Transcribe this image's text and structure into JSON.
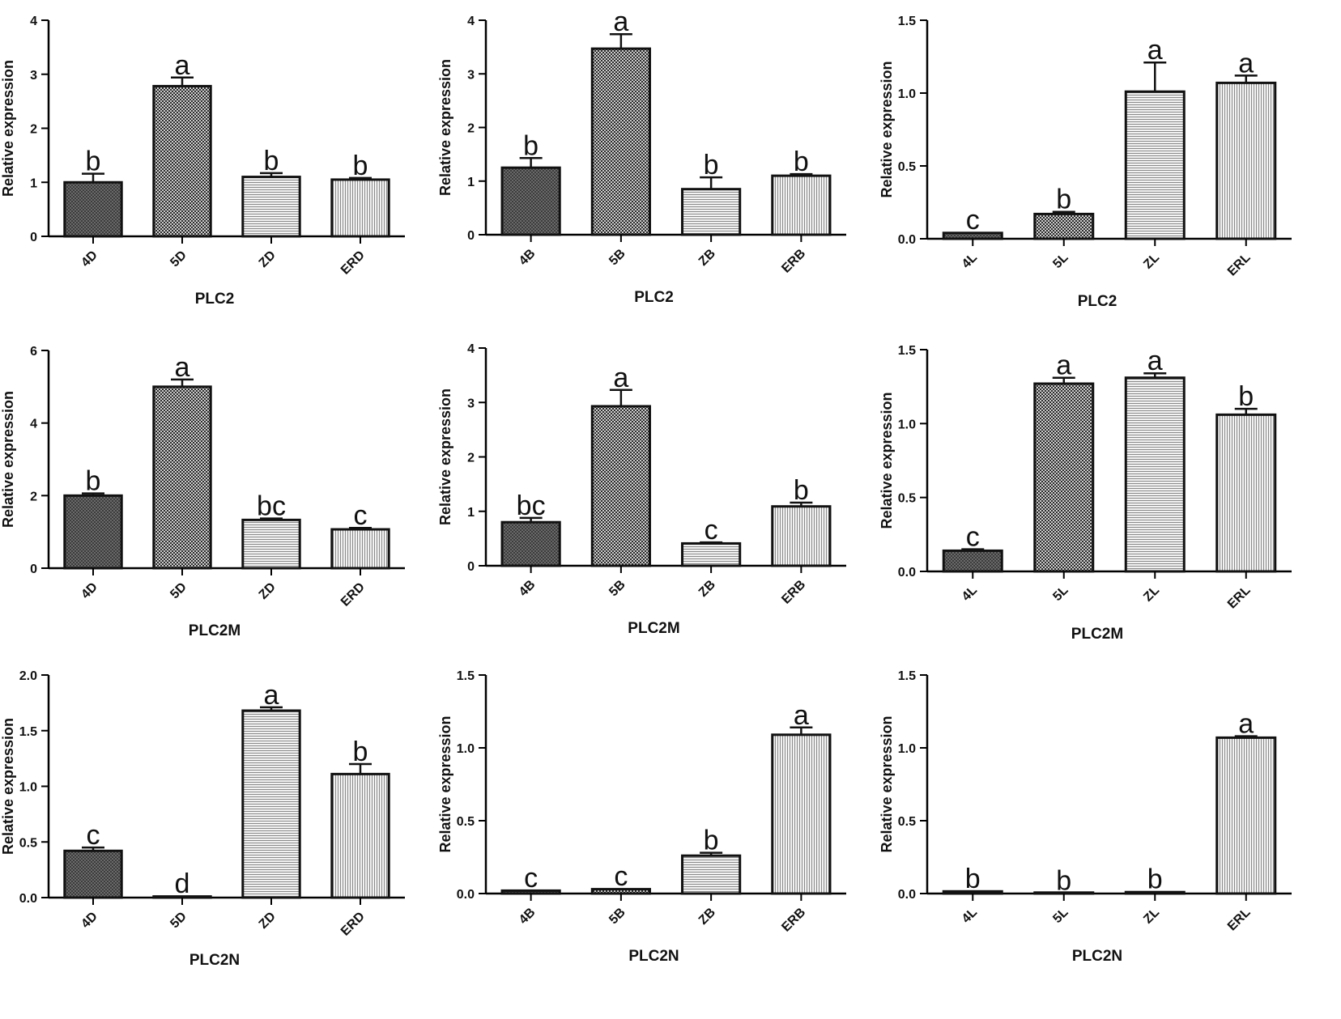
{
  "colors": {
    "axis": "#000000",
    "bar_stroke": "#111111",
    "background": "#ffffff"
  },
  "chart_data": [
    {
      "type": "bar",
      "title": "",
      "xlabel": "PLC2",
      "ylabel": "Relative expression",
      "categories": [
        "4D",
        "5D",
        "ZD",
        "ERD"
      ],
      "values": [
        1.0,
        2.78,
        1.1,
        1.05
      ],
      "errors": [
        0.16,
        0.16,
        0.07,
        0.03
      ],
      "letters": [
        "b",
        "a",
        "b",
        "b"
      ],
      "ylim": [
        0,
        4
      ],
      "yticks": [
        "0",
        "1",
        "2",
        "3",
        "4"
      ]
    },
    {
      "type": "bar",
      "title": "",
      "xlabel": "PLC2",
      "ylabel": "Relative expression",
      "categories": [
        "4B",
        "5B",
        "ZB",
        "ERB"
      ],
      "values": [
        1.25,
        3.47,
        0.85,
        1.1
      ],
      "errors": [
        0.18,
        0.27,
        0.22,
        0.03
      ],
      "letters": [
        "b",
        "a",
        "b",
        "b"
      ],
      "ylim": [
        0,
        4
      ],
      "yticks": [
        "0",
        "1",
        "2",
        "3",
        "4"
      ]
    },
    {
      "type": "bar",
      "title": "",
      "xlabel": "PLC2",
      "ylabel": "Relative expression",
      "categories": [
        "4L",
        "5L",
        "ZL",
        "ERL"
      ],
      "values": [
        0.04,
        0.17,
        1.01,
        1.07
      ],
      "errors": [
        0.005,
        0.015,
        0.2,
        0.05
      ],
      "letters": [
        "c",
        "b",
        "a",
        "a"
      ],
      "ylim": [
        0,
        1.5
      ],
      "yticks": [
        "0.0",
        "0.5",
        "1.0",
        "1.5"
      ]
    },
    {
      "type": "bar",
      "title": "",
      "xlabel": "PLC2M",
      "ylabel": "Relative expression",
      "categories": [
        "4D",
        "5D",
        "ZD",
        "ERD"
      ],
      "values": [
        2.0,
        5.0,
        1.33,
        1.07
      ],
      "errors": [
        0.06,
        0.2,
        0.04,
        0.04
      ],
      "letters": [
        "b",
        "a",
        "bc",
        "c"
      ],
      "ylim": [
        0,
        6
      ],
      "yticks": [
        "0",
        "2",
        "4",
        "6"
      ]
    },
    {
      "type": "bar",
      "title": "",
      "xlabel": "PLC2M",
      "ylabel": "Relative expression",
      "categories": [
        "4B",
        "5B",
        "ZB",
        "ERB"
      ],
      "values": [
        0.8,
        2.93,
        0.41,
        1.09
      ],
      "errors": [
        0.08,
        0.3,
        0.02,
        0.07
      ],
      "letters": [
        "bc",
        "a",
        "c",
        "b"
      ],
      "ylim": [
        0,
        4
      ],
      "yticks": [
        "0",
        "1",
        "2",
        "3",
        "4"
      ]
    },
    {
      "type": "bar",
      "title": "",
      "xlabel": "PLC2M",
      "ylabel": "Relative expression",
      "categories": [
        "4L",
        "5L",
        "ZL",
        "ERL"
      ],
      "values": [
        0.14,
        1.27,
        1.31,
        1.06
      ],
      "errors": [
        0.01,
        0.04,
        0.03,
        0.04
      ],
      "letters": [
        "c",
        "a",
        "a",
        "b"
      ],
      "ylim": [
        0,
        1.5
      ],
      "yticks": [
        "0.0",
        "0.5",
        "1.0",
        "1.5"
      ]
    },
    {
      "type": "bar",
      "title": "",
      "xlabel": "PLC2N",
      "ylabel": "Relative expression",
      "categories": [
        "4D",
        "5D",
        "ZD",
        "ERD"
      ],
      "values": [
        0.42,
        0.01,
        1.68,
        1.11
      ],
      "errors": [
        0.03,
        0.003,
        0.03,
        0.09
      ],
      "letters": [
        "c",
        "d",
        "a",
        "b"
      ],
      "ylim": [
        0,
        2.0
      ],
      "yticks": [
        "0.0",
        "0.5",
        "1.0",
        "1.5",
        "2.0"
      ]
    },
    {
      "type": "bar",
      "title": "",
      "xlabel": "PLC2N",
      "ylabel": "Relative expression",
      "categories": [
        "4B",
        "5B",
        "ZB",
        "ERB"
      ],
      "values": [
        0.02,
        0.03,
        0.26,
        1.09
      ],
      "errors": [
        0.003,
        0.004,
        0.02,
        0.05
      ],
      "letters": [
        "c",
        "c",
        "b",
        "a"
      ],
      "ylim": [
        0,
        1.5
      ],
      "yticks": [
        "0.0",
        "0.5",
        "1.0",
        "1.5"
      ]
    },
    {
      "type": "bar",
      "title": "",
      "xlabel": "PLC2N",
      "ylabel": "Relative expression",
      "categories": [
        "4L",
        "5L",
        "ZL",
        "ERL"
      ],
      "values": [
        0.015,
        0.002,
        0.01,
        1.07
      ],
      "errors": [
        0.003,
        0.001,
        0.005,
        0.01
      ],
      "letters": [
        "b",
        "b",
        "b",
        "a"
      ],
      "ylim": [
        0,
        1.5
      ],
      "yticks": [
        "0.0",
        "0.5",
        "1.0",
        "1.5"
      ]
    }
  ]
}
